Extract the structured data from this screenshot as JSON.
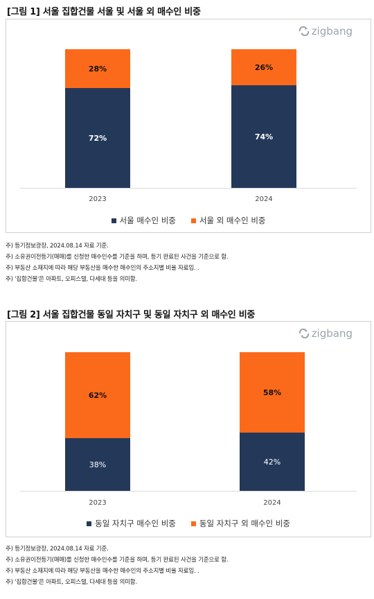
{
  "colors": {
    "navy": "#24395a",
    "orange": "#fb6a1a",
    "axis": "#d9d9d9"
  },
  "logo": {
    "text": "zigbang",
    "icon": "zigbang-logo-icon"
  },
  "figures": [
    {
      "title": "[그림 1] 서울 집합건물 서울 및 서울 외 매수인 비중",
      "legend": [
        "서울 매수인 비중",
        "서울 외 매수인 비중"
      ],
      "notes": [
        "주) 등기정보광장, 2024.08.14 자료 기준.",
        "주) 소유권이전등기(매매)를 신청한 매수인수를 기준을 하며, 등기 완료된 사건을 기준으로 함.",
        "주) 부동산 소재지에 따라 해당 부동산을 매수한 매수인의 주소지별 비율 자료임. .",
        "주) '집합건물'은 아파트, 오피스텔, 다세대 등을 의미함."
      ]
    },
    {
      "title": "[그림 2] 서울 집합건물 동일 자치구 및 동일 자치구 외 매수인 비중",
      "legend": [
        "동일 자치구 매수인 비중",
        "동일 자치구 외 매수인 비중"
      ],
      "notes": [
        "주) 등기정보광장, 2024.08.14 자료 기준.",
        "주) 소유권이전등기(매매)를 신청한 매수인수를 기준을 하며, 등기 완료된 사건을 기준으로 함.",
        "주) 부동산 소재지에 따라 해당 부동산을 매수한 매수인의 주소지별 비율 자료임. .",
        "주) '집합건물'은 아파트, 오피스텔, 다세대 등을 의미함."
      ]
    }
  ],
  "chart_data": [
    {
      "type": "bar",
      "stacked": true,
      "title": "[그림 1] 서울 집합건물 서울 및 서울 외 매수인 비중",
      "categories": [
        "2023",
        "2024"
      ],
      "series": [
        {
          "name": "서울 매수인 비중",
          "values": [
            72,
            74
          ],
          "labels": [
            "72%",
            "74%"
          ],
          "color": "#24395a"
        },
        {
          "name": "서울 외 매수인 비중",
          "values": [
            28,
            26
          ],
          "labels": [
            "28%",
            "26%"
          ],
          "color": "#fb6a1a"
        }
      ],
      "ylim": [
        0,
        100
      ],
      "legend_position": "bottom",
      "grid": false
    },
    {
      "type": "bar",
      "stacked": true,
      "title": "[그림 2] 서울 집합건물 동일 자치구 및 동일 자치구 외 매수인 비중",
      "categories": [
        "2023",
        "2024"
      ],
      "series": [
        {
          "name": "동일 자치구 매수인 비중",
          "values": [
            38,
            42
          ],
          "labels": [
            "38%",
            "42%"
          ],
          "color": "#24395a"
        },
        {
          "name": "동일 자치구 외 매수인 비중",
          "values": [
            62,
            58
          ],
          "labels": [
            "62%",
            "58%"
          ],
          "color": "#fb6a1a"
        }
      ],
      "ylim": [
        0,
        100
      ],
      "legend_position": "bottom",
      "grid": false
    }
  ]
}
